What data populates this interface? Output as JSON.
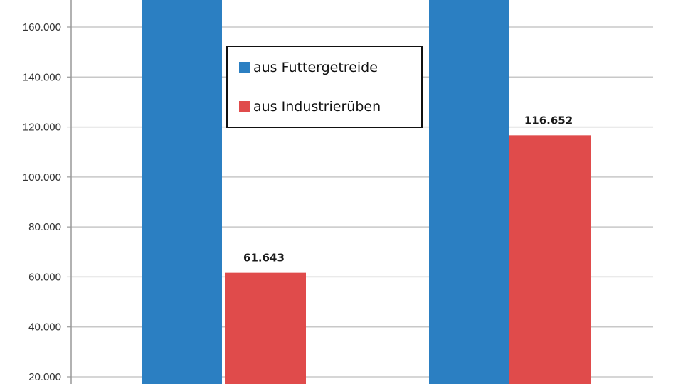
{
  "chart_data": {
    "type": "bar",
    "categories": [
      "",
      ""
    ],
    "series": [
      {
        "name": "aus Futtergetreide",
        "color": "#2b7fc2",
        "values": [
          null,
          null
        ],
        "note_visible": "bars extend above visible range"
      },
      {
        "name": "aus Industrierüben",
        "color": "#e04b4b",
        "values": [
          61643,
          116652
        ],
        "labels": [
          "61.643",
          "116.652"
        ]
      }
    ],
    "y_ticks": [
      {
        "value": 20000,
        "label": "20.000"
      },
      {
        "value": 40000,
        "label": "40.000"
      },
      {
        "value": 60000,
        "label": "60.000"
      },
      {
        "value": 80000,
        "label": "80.000"
      },
      {
        "value": 100000,
        "label": "100.000"
      },
      {
        "value": 120000,
        "label": "120.000"
      },
      {
        "value": 140000,
        "label": "140.000"
      },
      {
        "value": 160000,
        "label": "160.000"
      }
    ],
    "ylim": [
      14000,
      174000
    ],
    "grid": true,
    "legend_position": "top-center",
    "gridline_color": "#c8c8c8"
  },
  "legend": {
    "items": [
      {
        "label": "aus Futtergetreide",
        "color": "#2b7fc2"
      },
      {
        "label": "aus Industrierüben",
        "color": "#e04b4b"
      }
    ]
  }
}
